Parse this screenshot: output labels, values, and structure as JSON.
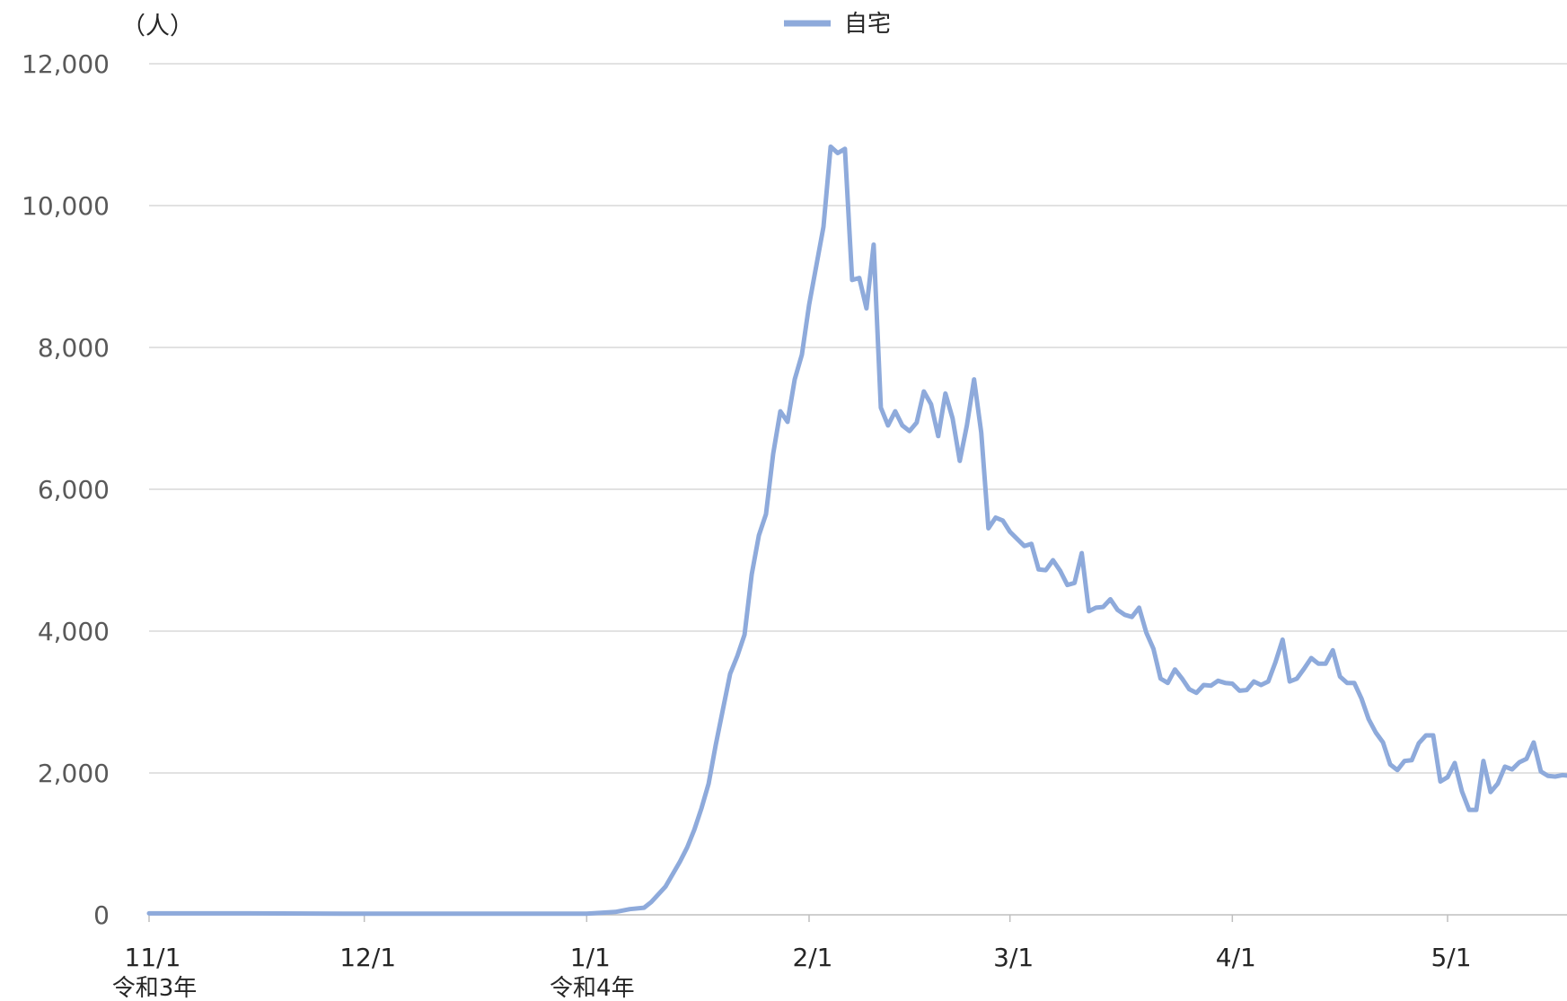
{
  "chart_data": {
    "type": "line",
    "y_unit": "（人）",
    "ylim": [
      0,
      12000
    ],
    "y_ticks": [
      0,
      2000,
      4000,
      6000,
      8000,
      10000,
      12000
    ],
    "y_tick_labels": [
      "0",
      "2,000",
      "4,000",
      "6,000",
      "8,000",
      "10,000",
      "12,000"
    ],
    "x_range": [
      "2021-11-01",
      "2022-05-20"
    ],
    "x_ticks": [
      {
        "date": "2021-11-01",
        "label": "11/1",
        "sublabel": "令和3年"
      },
      {
        "date": "2021-12-01",
        "label": "12/1",
        "sublabel": ""
      },
      {
        "date": "2022-01-01",
        "label": "1/1",
        "sublabel": "令和4年"
      },
      {
        "date": "2022-02-01",
        "label": "2/1",
        "sublabel": ""
      },
      {
        "date": "2022-03-01",
        "label": "3/1",
        "sublabel": ""
      },
      {
        "date": "2022-04-01",
        "label": "4/1",
        "sublabel": ""
      },
      {
        "date": "2022-05-01",
        "label": "5/1",
        "sublabel": ""
      }
    ],
    "grid": true,
    "legend_position": "top-center",
    "series": [
      {
        "name": "自宅",
        "color": "#8eaadb",
        "points": [
          [
            "2021-11-01",
            20
          ],
          [
            "2021-11-15",
            20
          ],
          [
            "2021-12-01",
            15
          ],
          [
            "2021-12-15",
            15
          ],
          [
            "2022-01-01",
            15
          ],
          [
            "2022-01-05",
            40
          ],
          [
            "2022-01-07",
            80
          ],
          [
            "2022-01-09",
            100
          ],
          [
            "2022-01-10",
            180
          ],
          [
            "2022-01-12",
            400
          ],
          [
            "2022-01-14",
            750
          ],
          [
            "2022-01-15",
            950
          ],
          [
            "2022-01-16",
            1200
          ],
          [
            "2022-01-17",
            1500
          ],
          [
            "2022-01-18",
            1850
          ],
          [
            "2022-01-19",
            2400
          ],
          [
            "2022-01-20",
            2900
          ],
          [
            "2022-01-21",
            3400
          ],
          [
            "2022-01-22",
            3650
          ],
          [
            "2022-01-23",
            3950
          ],
          [
            "2022-01-24",
            4800
          ],
          [
            "2022-01-25",
            5350
          ],
          [
            "2022-01-26",
            5650
          ],
          [
            "2022-01-27",
            6500
          ],
          [
            "2022-01-28",
            7100
          ],
          [
            "2022-01-29",
            6950
          ],
          [
            "2022-01-30",
            7550
          ],
          [
            "2022-01-31",
            7900
          ],
          [
            "2022-02-01",
            8600
          ],
          [
            "2022-02-02",
            9150
          ],
          [
            "2022-02-03",
            9700
          ],
          [
            "2022-02-04",
            10830
          ],
          [
            "2022-02-05",
            10740
          ],
          [
            "2022-02-06",
            10800
          ],
          [
            "2022-02-07",
            8950
          ],
          [
            "2022-02-08",
            8980
          ],
          [
            "2022-02-09",
            8550
          ],
          [
            "2022-02-10",
            9450
          ],
          [
            "2022-02-11",
            7150
          ],
          [
            "2022-02-12",
            6900
          ],
          [
            "2022-02-13",
            7100
          ],
          [
            "2022-02-14",
            6900
          ],
          [
            "2022-02-15",
            6820
          ],
          [
            "2022-02-16",
            6940
          ],
          [
            "2022-02-17",
            7380
          ],
          [
            "2022-02-18",
            7200
          ],
          [
            "2022-02-19",
            6750
          ],
          [
            "2022-02-20",
            7350
          ],
          [
            "2022-02-21",
            7000
          ],
          [
            "2022-02-22",
            6400
          ],
          [
            "2022-02-23",
            6900
          ],
          [
            "2022-02-24",
            7550
          ],
          [
            "2022-02-25",
            6800
          ],
          [
            "2022-02-26",
            5450
          ],
          [
            "2022-02-27",
            5600
          ],
          [
            "2022-02-28",
            5560
          ],
          [
            "2022-03-01",
            5400
          ],
          [
            "2022-03-02",
            5300
          ],
          [
            "2022-03-03",
            5200
          ],
          [
            "2022-03-04",
            5230
          ],
          [
            "2022-03-05",
            4870
          ],
          [
            "2022-03-06",
            4860
          ],
          [
            "2022-03-07",
            5000
          ],
          [
            "2022-03-08",
            4850
          ],
          [
            "2022-03-09",
            4650
          ],
          [
            "2022-03-10",
            4680
          ],
          [
            "2022-03-11",
            5100
          ],
          [
            "2022-03-12",
            4280
          ],
          [
            "2022-03-13",
            4330
          ],
          [
            "2022-03-14",
            4340
          ],
          [
            "2022-03-15",
            4450
          ],
          [
            "2022-03-16",
            4300
          ],
          [
            "2022-03-17",
            4230
          ],
          [
            "2022-03-18",
            4200
          ],
          [
            "2022-03-19",
            4330
          ],
          [
            "2022-03-20",
            3980
          ],
          [
            "2022-03-21",
            3750
          ],
          [
            "2022-03-22",
            3330
          ],
          [
            "2022-03-23",
            3270
          ],
          [
            "2022-03-24",
            3460
          ],
          [
            "2022-03-25",
            3330
          ],
          [
            "2022-03-26",
            3180
          ],
          [
            "2022-03-27",
            3130
          ],
          [
            "2022-03-28",
            3240
          ],
          [
            "2022-03-29",
            3230
          ],
          [
            "2022-03-30",
            3300
          ],
          [
            "2022-03-31",
            3270
          ],
          [
            "2022-04-01",
            3260
          ],
          [
            "2022-04-02",
            3160
          ],
          [
            "2022-04-03",
            3170
          ],
          [
            "2022-04-04",
            3290
          ],
          [
            "2022-04-05",
            3240
          ],
          [
            "2022-04-06",
            3290
          ],
          [
            "2022-04-07",
            3560
          ],
          [
            "2022-04-08",
            3880
          ],
          [
            "2022-04-09",
            3290
          ],
          [
            "2022-04-10",
            3330
          ],
          [
            "2022-04-11",
            3470
          ],
          [
            "2022-04-12",
            3620
          ],
          [
            "2022-04-13",
            3540
          ],
          [
            "2022-04-14",
            3540
          ],
          [
            "2022-04-15",
            3730
          ],
          [
            "2022-04-16",
            3360
          ],
          [
            "2022-04-17",
            3270
          ],
          [
            "2022-04-18",
            3270
          ],
          [
            "2022-04-19",
            3050
          ],
          [
            "2022-04-20",
            2760
          ],
          [
            "2022-04-21",
            2570
          ],
          [
            "2022-04-22",
            2430
          ],
          [
            "2022-04-23",
            2120
          ],
          [
            "2022-04-24",
            2040
          ],
          [
            "2022-04-25",
            2170
          ],
          [
            "2022-04-26",
            2180
          ],
          [
            "2022-04-27",
            2420
          ],
          [
            "2022-04-28",
            2530
          ],
          [
            "2022-04-29",
            2530
          ],
          [
            "2022-04-30",
            1880
          ],
          [
            "2022-05-01",
            1940
          ],
          [
            "2022-05-02",
            2140
          ],
          [
            "2022-05-03",
            1740
          ],
          [
            "2022-05-04",
            1480
          ],
          [
            "2022-05-05",
            1480
          ],
          [
            "2022-05-06",
            2170
          ],
          [
            "2022-05-07",
            1730
          ],
          [
            "2022-05-08",
            1850
          ],
          [
            "2022-05-09",
            2090
          ],
          [
            "2022-05-10",
            2050
          ],
          [
            "2022-05-11",
            2150
          ],
          [
            "2022-05-12",
            2200
          ],
          [
            "2022-05-13",
            2430
          ],
          [
            "2022-05-14",
            2020
          ],
          [
            "2022-05-15",
            1960
          ],
          [
            "2022-05-16",
            1950
          ],
          [
            "2022-05-17",
            1970
          ],
          [
            "2022-05-18",
            1960
          ],
          [
            "2022-05-19",
            1950
          ],
          [
            "2022-05-20",
            1950
          ]
        ]
      }
    ]
  }
}
